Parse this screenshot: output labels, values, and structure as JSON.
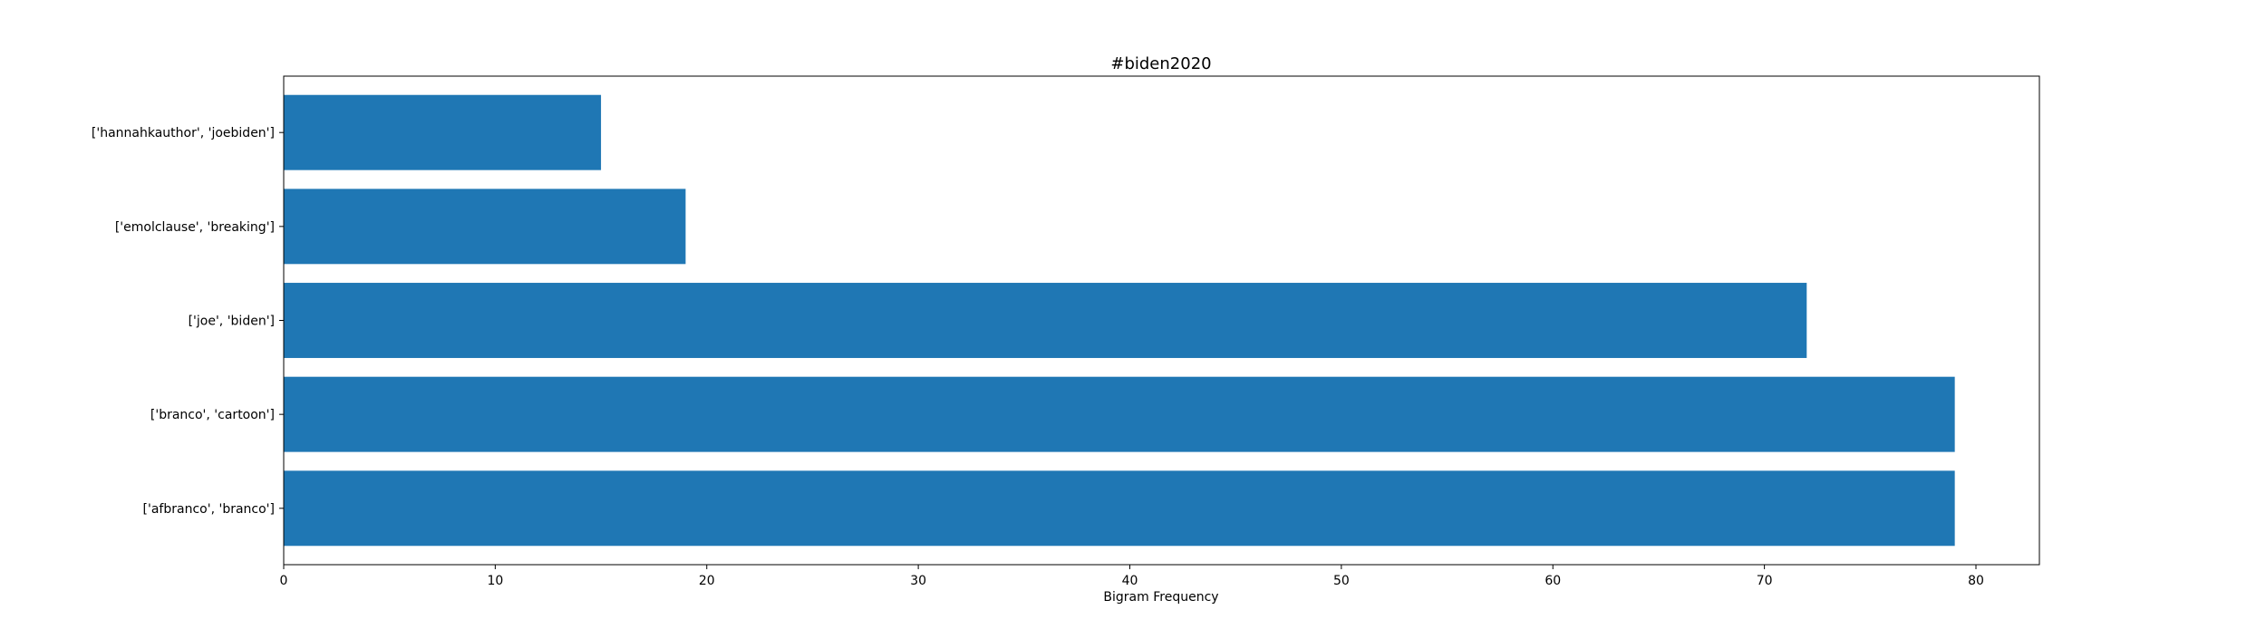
{
  "chart_data": {
    "type": "bar",
    "orientation": "horizontal",
    "title": "#biden2020",
    "xlabel": "Bigram Frequency",
    "ylabel": "",
    "categories": [
      "['afbranco', 'branco']",
      "['branco', 'cartoon']",
      "['joe', 'biden']",
      "['emolclause', 'breaking']",
      "['hannahkauthor', 'joebiden']"
    ],
    "values": [
      79,
      79,
      72,
      19,
      15
    ],
    "xlim": [
      0,
      83
    ],
    "xticks": [
      0,
      10,
      20,
      30,
      40,
      50,
      60,
      70,
      80
    ],
    "grid": false,
    "bar_color": "#1f77b4"
  }
}
